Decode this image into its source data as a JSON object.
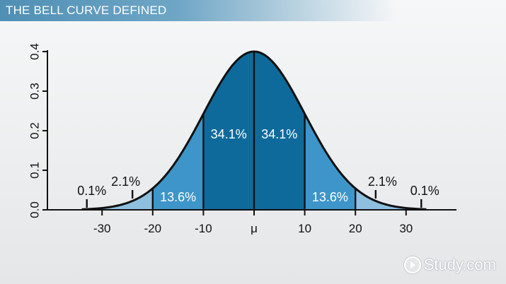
{
  "header": {
    "title": "THE BELL CURVE DEFINED"
  },
  "watermark": {
    "text": "Study.com"
  },
  "colors": {
    "axis": "#111111",
    "band_1sd": "#0f6a9c",
    "band_2sd": "#3d95c9",
    "band_3sd": "#8fbfdf",
    "curve": "#111111",
    "label_on_dark": "#ffffff",
    "label_on_light": "#111111"
  },
  "chart_data": {
    "type": "area",
    "title": "THE BELL CURVE DEFINED",
    "xlabel": "",
    "ylabel": "",
    "xlim": [
      -40,
      40
    ],
    "ylim": [
      0,
      0.4
    ],
    "yticks": [
      "0.0",
      "0.1",
      "0.2",
      "0.3",
      "0.4"
    ],
    "xticks": [
      {
        "value": -30,
        "label": "-30"
      },
      {
        "value": -20,
        "label": "-20"
      },
      {
        "value": -10,
        "label": "-10"
      },
      {
        "value": 0,
        "label": "μ"
      },
      {
        "value": 10,
        "label": "10"
      },
      {
        "value": 20,
        "label": "20"
      },
      {
        "value": 30,
        "label": "30"
      }
    ],
    "curve": {
      "mean": 0,
      "sd": 10,
      "peak": 0.4
    },
    "dividers": [
      -20,
      -10,
      0,
      10,
      20
    ],
    "bands": [
      {
        "from": -10,
        "to": 0,
        "label": "34.1%",
        "tier": "1sd"
      },
      {
        "from": 0,
        "to": 10,
        "label": "34.1%",
        "tier": "1sd"
      },
      {
        "from": -20,
        "to": -10,
        "label": "13.6%",
        "tier": "2sd"
      },
      {
        "from": 10,
        "to": 20,
        "label": "13.6%",
        "tier": "2sd"
      },
      {
        "from": -30,
        "to": -20,
        "label": "2.1%",
        "tier": "3sd"
      },
      {
        "from": 20,
        "to": 30,
        "label": "2.1%",
        "tier": "3sd"
      },
      {
        "from": -40,
        "to": -30,
        "label": "0.1%",
        "tier": "tail"
      },
      {
        "from": 30,
        "to": 40,
        "label": "0.1%",
        "tier": "tail"
      }
    ]
  }
}
